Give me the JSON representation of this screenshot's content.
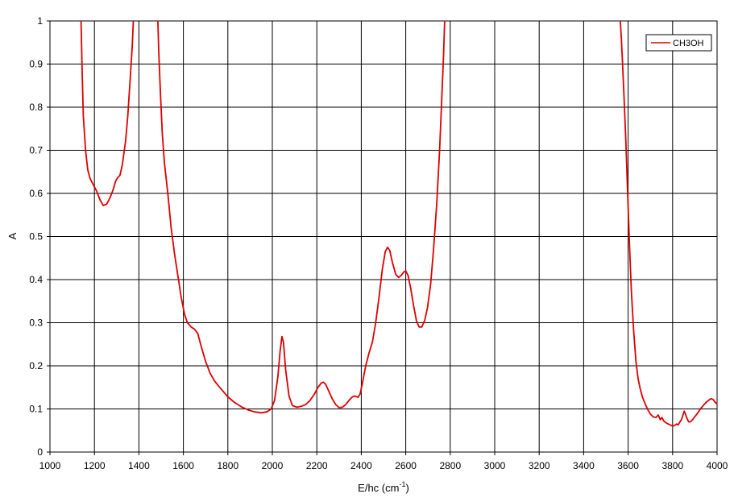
{
  "chart_data": {
    "type": "line",
    "xlabel": "E/hc (cm",
    "xlabel_superscript": "-1",
    "xlabel_suffix": ")",
    "ylabel": "A",
    "xlim": [
      1000,
      4000
    ],
    "ylim": [
      0,
      1
    ],
    "xticks": [
      1000,
      1200,
      1400,
      1600,
      1800,
      2000,
      2200,
      2400,
      2600,
      2800,
      3000,
      3200,
      3400,
      3600,
      3800,
      4000
    ],
    "yticks": [
      0,
      0.1,
      0.2,
      0.3,
      0.4,
      0.5,
      0.6,
      0.7,
      0.8,
      0.9,
      1
    ],
    "ytick_labels": [
      "0",
      "0.1",
      "0.2",
      "0.3",
      "0.4",
      "0.5",
      "0.6",
      "0.7",
      "0.8",
      "0.9",
      "1"
    ],
    "grid": true,
    "legend_position": "top-right",
    "series": [
      {
        "name": "CH3OH",
        "color": "#dd0000",
        "segments": [
          [
            [
              1140,
              1.0
            ],
            [
              1145,
              0.88
            ],
            [
              1150,
              0.78
            ],
            [
              1160,
              0.7
            ],
            [
              1170,
              0.655
            ],
            [
              1180,
              0.635
            ],
            [
              1195,
              0.62
            ],
            [
              1210,
              0.605
            ],
            [
              1225,
              0.585
            ],
            [
              1240,
              0.572
            ],
            [
              1255,
              0.575
            ],
            [
              1270,
              0.59
            ],
            [
              1285,
              0.61
            ],
            [
              1295,
              0.628
            ],
            [
              1305,
              0.637
            ],
            [
              1315,
              0.642
            ],
            [
              1325,
              0.665
            ],
            [
              1340,
              0.72
            ],
            [
              1350,
              0.78
            ],
            [
              1360,
              0.86
            ],
            [
              1370,
              0.94
            ],
            [
              1375,
              1.0
            ]
          ],
          [
            [
              1485,
              1.0
            ],
            [
              1490,
              0.92
            ],
            [
              1497,
              0.83
            ],
            [
              1505,
              0.74
            ],
            [
              1515,
              0.67
            ],
            [
              1530,
              0.6
            ],
            [
              1545,
              0.52
            ],
            [
              1560,
              0.46
            ],
            [
              1575,
              0.41
            ],
            [
              1590,
              0.36
            ],
            [
              1605,
              0.32
            ],
            [
              1618,
              0.3
            ],
            [
              1635,
              0.29
            ],
            [
              1650,
              0.285
            ],
            [
              1665,
              0.275
            ],
            [
              1680,
              0.245
            ],
            [
              1700,
              0.21
            ],
            [
              1720,
              0.183
            ],
            [
              1740,
              0.165
            ],
            [
              1760,
              0.152
            ],
            [
              1780,
              0.14
            ],
            [
              1800,
              0.128
            ],
            [
              1830,
              0.115
            ],
            [
              1860,
              0.105
            ],
            [
              1890,
              0.098
            ],
            [
              1920,
              0.093
            ],
            [
              1950,
              0.091
            ],
            [
              1975,
              0.093
            ],
            [
              1995,
              0.1
            ],
            [
              2010,
              0.12
            ],
            [
              2025,
              0.175
            ],
            [
              2035,
              0.235
            ],
            [
              2043,
              0.268
            ],
            [
              2050,
              0.255
            ],
            [
              2060,
              0.19
            ],
            [
              2075,
              0.13
            ],
            [
              2090,
              0.108
            ],
            [
              2110,
              0.104
            ],
            [
              2130,
              0.106
            ],
            [
              2150,
              0.11
            ],
            [
              2170,
              0.12
            ],
            [
              2190,
              0.135
            ],
            [
              2205,
              0.15
            ],
            [
              2220,
              0.16
            ],
            [
              2230,
              0.162
            ],
            [
              2240,
              0.157
            ],
            [
              2255,
              0.14
            ],
            [
              2270,
              0.123
            ],
            [
              2285,
              0.11
            ],
            [
              2300,
              0.103
            ],
            [
              2315,
              0.104
            ],
            [
              2330,
              0.11
            ],
            [
              2345,
              0.12
            ],
            [
              2360,
              0.128
            ],
            [
              2372,
              0.13
            ],
            [
              2385,
              0.127
            ],
            [
              2395,
              0.135
            ],
            [
              2405,
              0.16
            ],
            [
              2420,
              0.2
            ],
            [
              2435,
              0.23
            ],
            [
              2450,
              0.255
            ],
            [
              2465,
              0.3
            ],
            [
              2480,
              0.36
            ],
            [
              2495,
              0.425
            ],
            [
              2508,
              0.465
            ],
            [
              2518,
              0.475
            ],
            [
              2528,
              0.468
            ],
            [
              2540,
              0.44
            ],
            [
              2555,
              0.412
            ],
            [
              2568,
              0.405
            ],
            [
              2580,
              0.41
            ],
            [
              2592,
              0.418
            ],
            [
              2600,
              0.42
            ],
            [
              2610,
              0.41
            ],
            [
              2622,
              0.38
            ],
            [
              2635,
              0.34
            ],
            [
              2648,
              0.305
            ],
            [
              2660,
              0.29
            ],
            [
              2672,
              0.29
            ],
            [
              2685,
              0.305
            ],
            [
              2698,
              0.335
            ],
            [
              2712,
              0.39
            ],
            [
              2725,
              0.47
            ],
            [
              2740,
              0.58
            ],
            [
              2752,
              0.7
            ],
            [
              2762,
              0.82
            ],
            [
              2770,
              0.92
            ],
            [
              2775,
              1.0
            ]
          ],
          [
            [
              3565,
              1.0
            ],
            [
              3570,
              0.955
            ],
            [
              3575,
              0.9
            ],
            [
              3582,
              0.82
            ],
            [
              3590,
              0.72
            ],
            [
              3598,
              0.6
            ],
            [
              3606,
              0.48
            ],
            [
              3615,
              0.37
            ],
            [
              3625,
              0.28
            ],
            [
              3635,
              0.21
            ],
            [
              3645,
              0.17
            ],
            [
              3655,
              0.145
            ],
            [
              3665,
              0.127
            ],
            [
              3678,
              0.11
            ],
            [
              3690,
              0.097
            ],
            [
              3700,
              0.088
            ],
            [
              3712,
              0.082
            ],
            [
              3725,
              0.08
            ],
            [
              3735,
              0.086
            ],
            [
              3745,
              0.075
            ],
            [
              3752,
              0.08
            ],
            [
              3760,
              0.072
            ],
            [
              3770,
              0.068
            ],
            [
              3780,
              0.065
            ],
            [
              3790,
              0.063
            ],
            [
              3800,
              0.06
            ],
            [
              3810,
              0.062
            ],
            [
              3818,
              0.065
            ],
            [
              3825,
              0.063
            ],
            [
              3833,
              0.07
            ],
            [
              3840,
              0.075
            ],
            [
              3846,
              0.085
            ],
            [
              3852,
              0.095
            ],
            [
              3858,
              0.088
            ],
            [
              3865,
              0.078
            ],
            [
              3872,
              0.07
            ],
            [
              3880,
              0.07
            ],
            [
              3890,
              0.075
            ],
            [
              3900,
              0.082
            ],
            [
              3912,
              0.09
            ],
            [
              3925,
              0.1
            ],
            [
              3938,
              0.108
            ],
            [
              3950,
              0.115
            ],
            [
              3962,
              0.12
            ],
            [
              3972,
              0.124
            ],
            [
              3982,
              0.122
            ],
            [
              3992,
              0.115
            ],
            [
              4000,
              0.112
            ]
          ]
        ]
      }
    ]
  }
}
